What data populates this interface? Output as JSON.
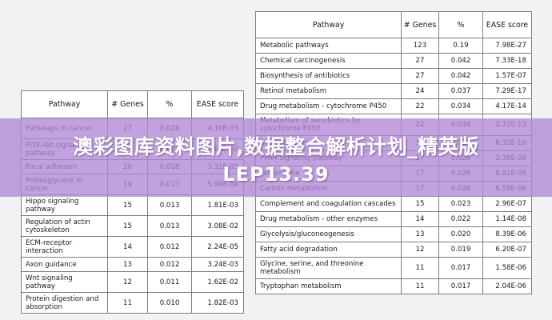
{
  "left_table": {
    "headers": [
      "Pathway",
      "# Genes",
      "%",
      "EASE score"
    ],
    "rows": [
      {
        "pathway": "Pathways in cancer",
        "genes": "27",
        "pct": "0.024",
        "score": "4.10E-03"
      },
      {
        "pathway": "PI3K-Akt signaling pathway",
        "genes": "23",
        "pct": "0.021",
        "score": "1.68E-02"
      },
      {
        "pathway": "Focal adhesion",
        "genes": "20",
        "pct": "0.018",
        "score": "3.31E-03"
      },
      {
        "pathway": "Proteoglycans in cancer",
        "genes": "19",
        "pct": "0.017",
        "score": "5.99E-04"
      },
      {
        "pathway": "Hippo signaling pathway",
        "genes": "15",
        "pct": "0.013",
        "score": "1.81E-03"
      },
      {
        "pathway": "Regulation of actin cytoskeleton",
        "genes": "15",
        "pct": "0.013",
        "score": "3.08E-02"
      },
      {
        "pathway": "ECM-receptor interaction",
        "genes": "14",
        "pct": "0.012",
        "score": "2.24E-05"
      },
      {
        "pathway": "Axon guidance",
        "genes": "13",
        "pct": "0.012",
        "score": "3.24E-03"
      },
      {
        "pathway": "Wnt signaling pathway",
        "genes": "12",
        "pct": "0.011",
        "score": "1.62E-02"
      },
      {
        "pathway": "Protein digestion and absorption",
        "genes": "11",
        "pct": "0.010",
        "score": "1.82E-03"
      }
    ]
  },
  "right_table": {
    "headers": [
      "Pathway",
      "# Genes",
      "%",
      "EASE score"
    ],
    "rows": [
      {
        "pathway": "Metabolic pathways",
        "genes": "123",
        "pct": "0.19",
        "score": "7.98E-27"
      },
      {
        "pathway": "Chemical carcinogenesis",
        "genes": "27",
        "pct": "0.042",
        "score": "7.33E-18"
      },
      {
        "pathway": "Biosynthesis of antibiotics",
        "genes": "27",
        "pct": "0.042",
        "score": "1.57E-07"
      },
      {
        "pathway": "Retinol metabolism",
        "genes": "24",
        "pct": "0.037",
        "score": "7.29E-17"
      },
      {
        "pathway": "Drug metabolism - cytochrome P450",
        "genes": "22",
        "pct": "0.034",
        "score": "4.17E-14"
      },
      {
        "pathway": "Metabolism of xenobiotics by cytochrome P450",
        "genes": "22",
        "pct": "0.034",
        "score": "2.72E-13"
      },
      {
        "pathway": "Bile secretion",
        "genes": "18",
        "pct": "0.028",
        "score": "6.32E-10"
      },
      {
        "pathway": "PPAR signaling pathway",
        "genes": "17",
        "pct": "0.026",
        "score": "3.36E-09"
      },
      {
        "pathway": "Peroxisome",
        "genes": "17",
        "pct": "0.026",
        "score": "8.81E-08"
      },
      {
        "pathway": "Carbon metabolism",
        "genes": "17",
        "pct": "0.026",
        "score": "6.59E-06"
      },
      {
        "pathway": "Complement and coagulation cascades",
        "genes": "15",
        "pct": "0.023",
        "score": "2.96E-07"
      },
      {
        "pathway": "Drug metabolism - other enzymes",
        "genes": "14",
        "pct": "0.022",
        "score": "1.14E-08"
      },
      {
        "pathway": "Glycolysis/gluconeogenesis",
        "genes": "13",
        "pct": "0.020",
        "score": "8.39E-06"
      },
      {
        "pathway": "Fatty acid degradation",
        "genes": "12",
        "pct": "0.019",
        "score": "6.20E-07"
      },
      {
        "pathway": "Glycine, serine, and threonine metabolism",
        "genes": "11",
        "pct": "0.017",
        "score": "1.58E-06"
      },
      {
        "pathway": "Tryptophan metabolism",
        "genes": "11",
        "pct": "0.017",
        "score": "2.04E-06"
      }
    ]
  },
  "banner": {
    "line1": "澳彩图库资料图片,数据整合解析计划_精英版",
    "line2": "LEP13.39"
  }
}
